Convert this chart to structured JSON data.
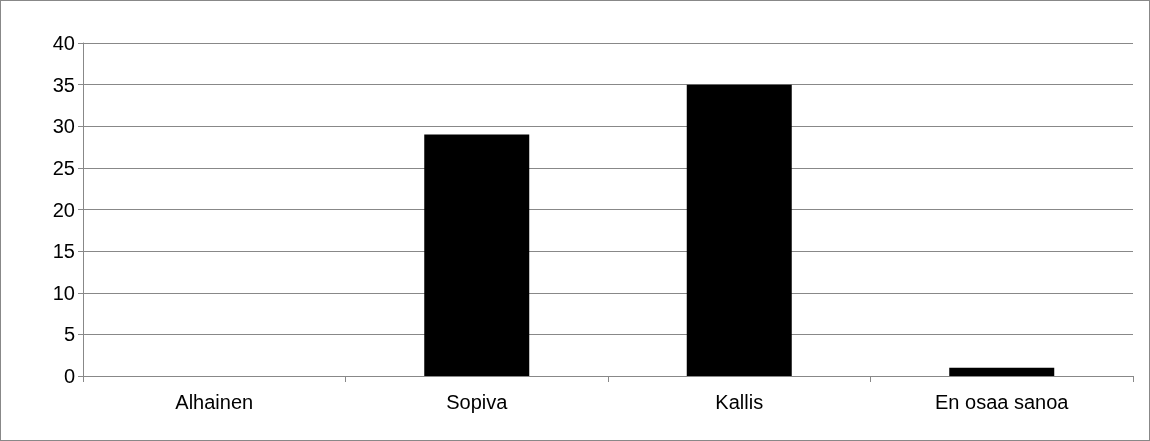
{
  "chart_data": {
    "type": "bar",
    "categories": [
      "Alhainen",
      "Sopiva",
      "Kallis",
      "En osaa sanoa"
    ],
    "values": [
      0,
      29,
      35,
      1
    ],
    "color": "#000000",
    "ylim": [
      0,
      40
    ],
    "yticks": [
      0,
      5,
      10,
      15,
      20,
      25,
      30,
      35,
      40
    ],
    "grid": "y"
  }
}
